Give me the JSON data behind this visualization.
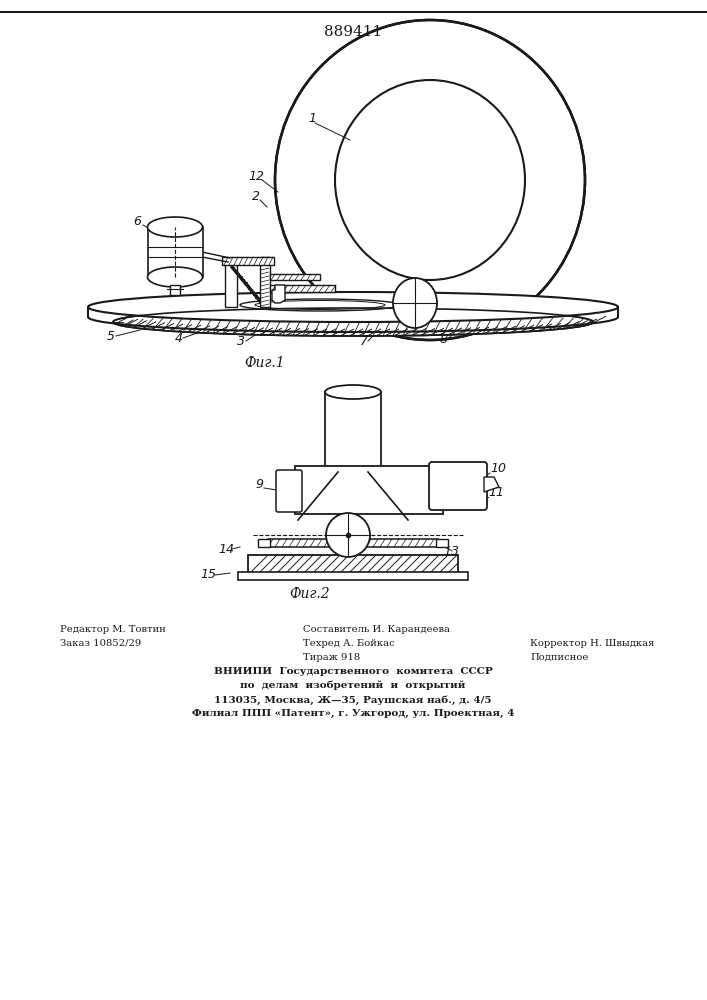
{
  "patent_number": "889411",
  "fig1_caption": "Фиг.1",
  "fig2_caption": "Фиг.2",
  "footer_line1_left": "Редактор М. Товтин",
  "footer_line2_left": "Заказ 10852/29",
  "footer_line1_mid": "Составитель И. Карандеева",
  "footer_line2_mid": "Техред А. Бойкас",
  "footer_line3_mid": "Тираж 918",
  "footer_line2_right": "Корректор Н. Швыдкая",
  "footer_line3_right": "Подписное",
  "footer_vniip1": "ВНИИПИ  Государственного  комитета  СССР",
  "footer_vniip2": "по  делам  изобретений  и  открытий",
  "footer_vniip3": "113035, Москва, Ж—35, Раушская наб., д. 4/5",
  "footer_vniip4": "Филиал ППП «Патент», г. Ужгород, ул. Проектная, 4",
  "bg_color": "#ffffff",
  "line_color": "#1a1a1a"
}
